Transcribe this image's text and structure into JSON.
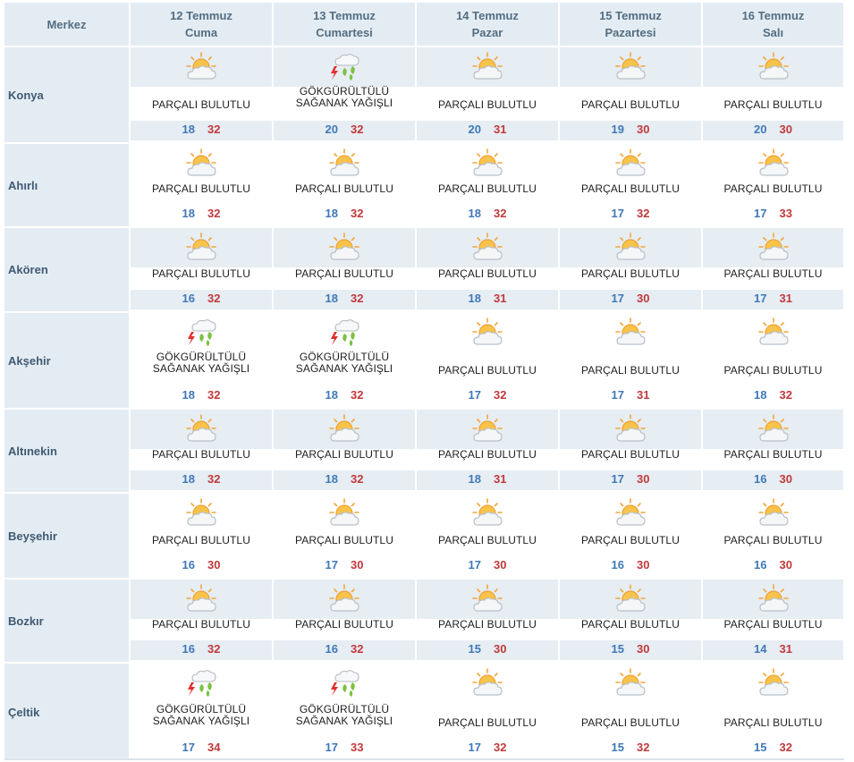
{
  "header": {
    "location_label": "Merkez",
    "days": [
      {
        "date": "12 Temmuz",
        "weekday": "Cuma"
      },
      {
        "date": "13 Temmuz",
        "weekday": "Cumartesi"
      },
      {
        "date": "14 Temmuz",
        "weekday": "Pazar"
      },
      {
        "date": "15 Temmuz",
        "weekday": "Pazartesi"
      },
      {
        "date": "16 Temmuz",
        "weekday": "Salı"
      }
    ]
  },
  "colors": {
    "header_bg": "#e4ecf3",
    "min_temp": "#3f78b8",
    "max_temp": "#c0393b",
    "sun": "#f6b73c",
    "rain": "#7cc242",
    "lightning": "#e0302b"
  },
  "icons": {
    "partly_cloudy": "partly-cloudy-icon",
    "thunderstorm": "thunderstorm-rain-icon"
  },
  "rows": [
    {
      "city": "Konya",
      "days": [
        {
          "cond": "PARÇALI BULUTLU",
          "icon": "partly_cloudy",
          "min": "18",
          "max": "32"
        },
        {
          "cond": "GÖKGÜRÜLTÜLÜ SAĞANAK YAĞIŞLI",
          "icon": "thunderstorm",
          "min": "20",
          "max": "32"
        },
        {
          "cond": "PARÇALI BULUTLU",
          "icon": "partly_cloudy",
          "min": "20",
          "max": "31"
        },
        {
          "cond": "PARÇALI BULUTLU",
          "icon": "partly_cloudy",
          "min": "19",
          "max": "30"
        },
        {
          "cond": "PARÇALI BULUTLU",
          "icon": "partly_cloudy",
          "min": "20",
          "max": "30"
        }
      ]
    },
    {
      "city": "Ahırlı",
      "days": [
        {
          "cond": "PARÇALI BULUTLU",
          "icon": "partly_cloudy",
          "min": "18",
          "max": "32"
        },
        {
          "cond": "PARÇALI BULUTLU",
          "icon": "partly_cloudy",
          "min": "18",
          "max": "32"
        },
        {
          "cond": "PARÇALI BULUTLU",
          "icon": "partly_cloudy",
          "min": "18",
          "max": "32"
        },
        {
          "cond": "PARÇALI BULUTLU",
          "icon": "partly_cloudy",
          "min": "17",
          "max": "32"
        },
        {
          "cond": "PARÇALI BULUTLU",
          "icon": "partly_cloudy",
          "min": "17",
          "max": "33"
        }
      ]
    },
    {
      "city": "Akören",
      "days": [
        {
          "cond": "PARÇALI BULUTLU",
          "icon": "partly_cloudy",
          "min": "16",
          "max": "32"
        },
        {
          "cond": "PARÇALI BULUTLU",
          "icon": "partly_cloudy",
          "min": "18",
          "max": "32"
        },
        {
          "cond": "PARÇALI BULUTLU",
          "icon": "partly_cloudy",
          "min": "18",
          "max": "31"
        },
        {
          "cond": "PARÇALI BULUTLU",
          "icon": "partly_cloudy",
          "min": "17",
          "max": "30"
        },
        {
          "cond": "PARÇALI BULUTLU",
          "icon": "partly_cloudy",
          "min": "17",
          "max": "31"
        }
      ]
    },
    {
      "city": "Akşehir",
      "days": [
        {
          "cond": "GÖKGÜRÜLTÜLÜ SAĞANAK YAĞIŞLI",
          "icon": "thunderstorm",
          "min": "18",
          "max": "32"
        },
        {
          "cond": "GÖKGÜRÜLTÜLÜ SAĞANAK YAĞIŞLI",
          "icon": "thunderstorm",
          "min": "18",
          "max": "32"
        },
        {
          "cond": "PARÇALI BULUTLU",
          "icon": "partly_cloudy",
          "min": "17",
          "max": "32"
        },
        {
          "cond": "PARÇALI BULUTLU",
          "icon": "partly_cloudy",
          "min": "17",
          "max": "31"
        },
        {
          "cond": "PARÇALI BULUTLU",
          "icon": "partly_cloudy",
          "min": "18",
          "max": "32"
        }
      ]
    },
    {
      "city": "Altınekin",
      "days": [
        {
          "cond": "PARÇALI BULUTLU",
          "icon": "partly_cloudy",
          "min": "18",
          "max": "32"
        },
        {
          "cond": "PARÇALI BULUTLU",
          "icon": "partly_cloudy",
          "min": "18",
          "max": "32"
        },
        {
          "cond": "PARÇALI BULUTLU",
          "icon": "partly_cloudy",
          "min": "18",
          "max": "31"
        },
        {
          "cond": "PARÇALI BULUTLU",
          "icon": "partly_cloudy",
          "min": "17",
          "max": "30"
        },
        {
          "cond": "PARÇALI BULUTLU",
          "icon": "partly_cloudy",
          "min": "16",
          "max": "30"
        }
      ]
    },
    {
      "city": "Beyşehir",
      "days": [
        {
          "cond": "PARÇALI BULUTLU",
          "icon": "partly_cloudy",
          "min": "16",
          "max": "30"
        },
        {
          "cond": "PARÇALI BULUTLU",
          "icon": "partly_cloudy",
          "min": "17",
          "max": "30"
        },
        {
          "cond": "PARÇALI BULUTLU",
          "icon": "partly_cloudy",
          "min": "17",
          "max": "30"
        },
        {
          "cond": "PARÇALI BULUTLU",
          "icon": "partly_cloudy",
          "min": "16",
          "max": "30"
        },
        {
          "cond": "PARÇALI BULUTLU",
          "icon": "partly_cloudy",
          "min": "16",
          "max": "30"
        }
      ]
    },
    {
      "city": "Bozkır",
      "days": [
        {
          "cond": "PARÇALI BULUTLU",
          "icon": "partly_cloudy",
          "min": "16",
          "max": "32"
        },
        {
          "cond": "PARÇALI BULUTLU",
          "icon": "partly_cloudy",
          "min": "16",
          "max": "32"
        },
        {
          "cond": "PARÇALI BULUTLU",
          "icon": "partly_cloudy",
          "min": "15",
          "max": "30"
        },
        {
          "cond": "PARÇALI BULUTLU",
          "icon": "partly_cloudy",
          "min": "15",
          "max": "30"
        },
        {
          "cond": "PARÇALI BULUTLU",
          "icon": "partly_cloudy",
          "min": "14",
          "max": "31"
        }
      ]
    },
    {
      "city": "Çeltik",
      "days": [
        {
          "cond": "GÖKGÜRÜLTÜLÜ SAĞANAK YAĞIŞLI",
          "icon": "thunderstorm",
          "min": "17",
          "max": "34"
        },
        {
          "cond": "GÖKGÜRÜLTÜLÜ SAĞANAK YAĞIŞLI",
          "icon": "thunderstorm",
          "min": "17",
          "max": "33"
        },
        {
          "cond": "PARÇALI BULUTLU",
          "icon": "partly_cloudy",
          "min": "17",
          "max": "32"
        },
        {
          "cond": "PARÇALI BULUTLU",
          "icon": "partly_cloudy",
          "min": "15",
          "max": "32"
        },
        {
          "cond": "PARÇALI BULUTLU",
          "icon": "partly_cloudy",
          "min": "15",
          "max": "32"
        }
      ]
    }
  ]
}
